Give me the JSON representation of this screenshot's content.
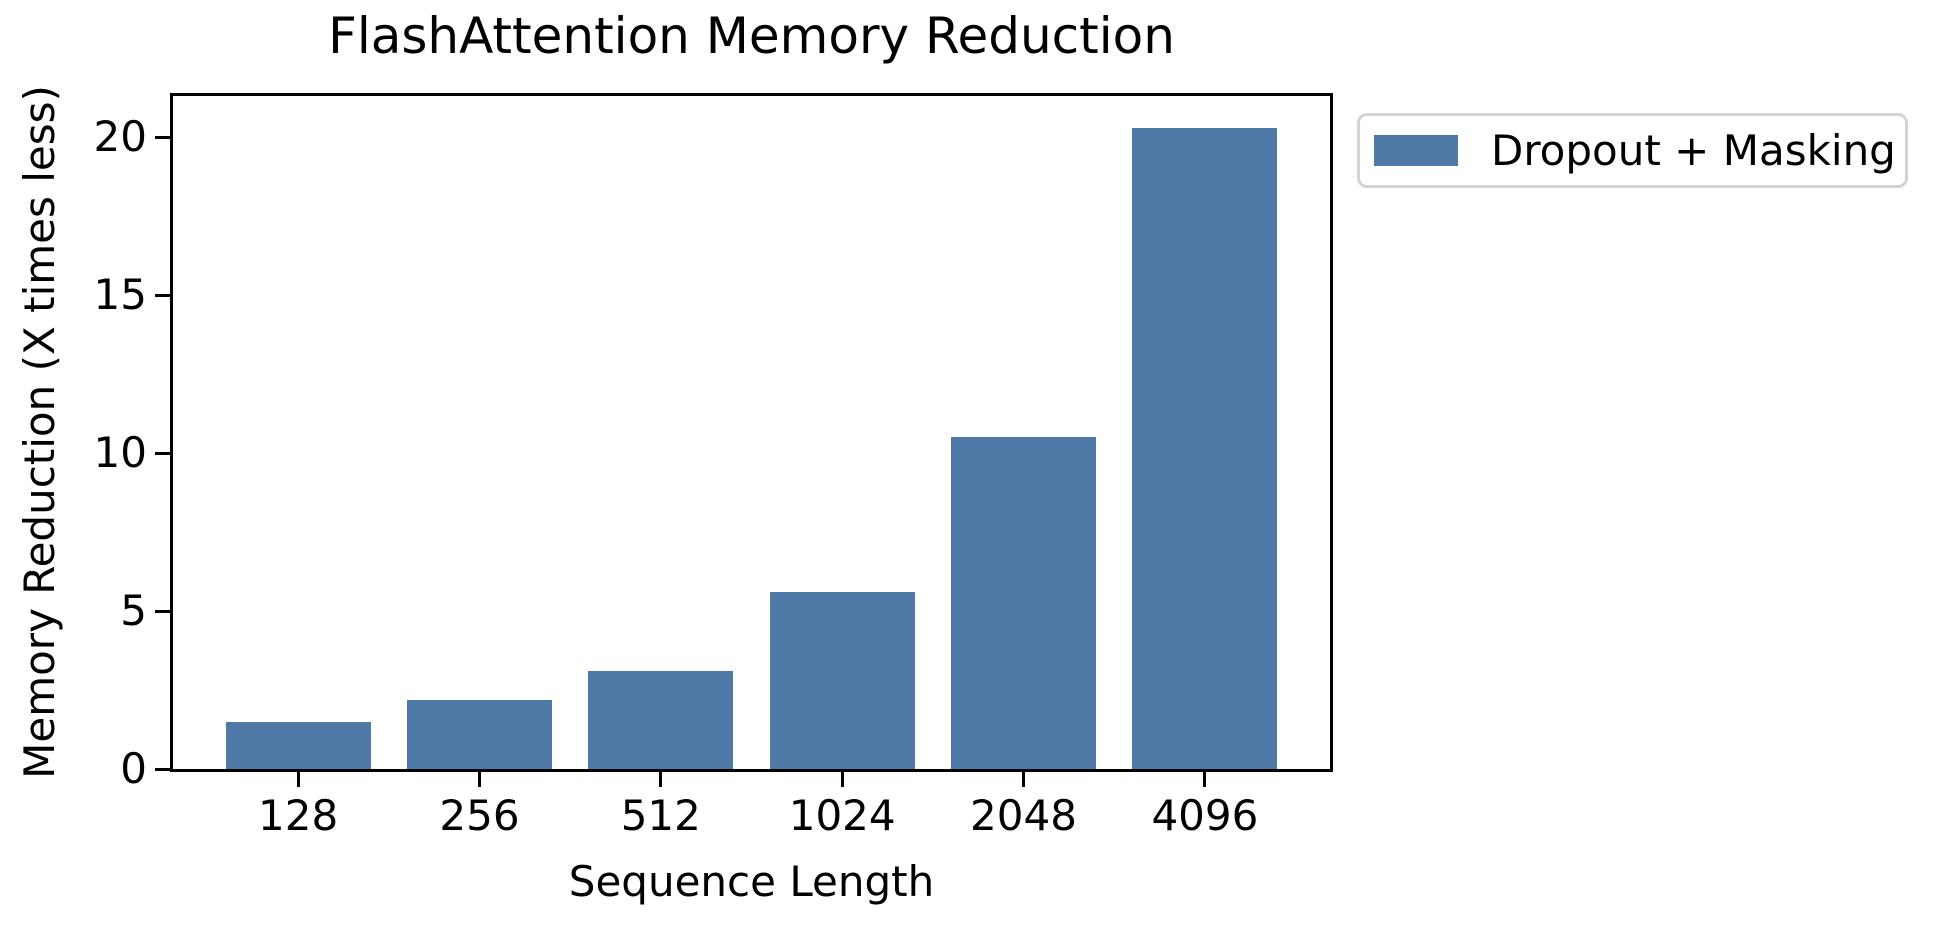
{
  "figure": {
    "background": "#FFFFFF"
  },
  "chart_data": {
    "type": "bar",
    "title": "FlashAttention Memory Reduction",
    "xlabel": "Sequence Length",
    "ylabel": "Memory Reduction (X times less)",
    "categories": [
      "128",
      "256",
      "512",
      "1024",
      "2048",
      "4096"
    ],
    "series": [
      {
        "name": "Dropout + Masking",
        "color": "#4E79A7",
        "values": [
          1.5,
          2.2,
          3.1,
          5.6,
          10.5,
          20.3
        ]
      }
    ],
    "ylim": [
      0,
      21.3
    ],
    "yticks": [
      0,
      5,
      10,
      15,
      20
    ],
    "bar_width_fraction": 0.8,
    "grid": false,
    "legend": {
      "labels": [
        "Dropout + Masking"
      ],
      "position": "outside-upper-right"
    }
  },
  "colors": {
    "bar": "#4E79A7",
    "spine": "#000000",
    "tick": "#000000",
    "text": "#000000",
    "legend_border": "#D3D3D3",
    "background": "#FFFFFF"
  }
}
